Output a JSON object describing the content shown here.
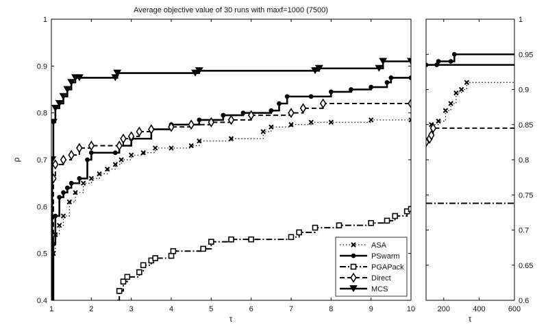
{
  "chart_data": [
    {
      "type": "line",
      "title": "Average objective value of 30 runs with maxf=1000 (7500)",
      "xlabel": "τ",
      "ylabel": "ρ",
      "xlim": [
        1,
        10
      ],
      "ylim": [
        0.4,
        1
      ],
      "xticks": [
        "1",
        "2",
        "3",
        "4",
        "5",
        "6",
        "7",
        "8",
        "9",
        "10"
      ],
      "yticks": [
        "0.4",
        "0.5",
        "0.6",
        "0.7",
        "0.8",
        "0.9",
        "1"
      ],
      "legend_position": "bottom-right",
      "series": [
        {
          "name": "ASA",
          "style": "dotted",
          "marker": "x",
          "points": [
            [
              1.0,
              0.4
            ],
            [
              1.05,
              0.5
            ],
            [
              1.1,
              0.54
            ],
            [
              1.2,
              0.56
            ],
            [
              1.3,
              0.58
            ],
            [
              1.45,
              0.61
            ],
            [
              1.6,
              0.63
            ],
            [
              1.8,
              0.65
            ],
            [
              2.0,
              0.66
            ],
            [
              2.2,
              0.67
            ],
            [
              2.4,
              0.68
            ],
            [
              2.6,
              0.69
            ],
            [
              2.75,
              0.7
            ],
            [
              3.0,
              0.71
            ],
            [
              3.3,
              0.715
            ],
            [
              3.6,
              0.725
            ],
            [
              4.0,
              0.725
            ],
            [
              4.5,
              0.73
            ],
            [
              4.7,
              0.74
            ],
            [
              5.5,
              0.745
            ],
            [
              6.3,
              0.76
            ],
            [
              6.5,
              0.77
            ],
            [
              7.0,
              0.775
            ],
            [
              7.5,
              0.78
            ],
            [
              8.0,
              0.78
            ],
            [
              9.0,
              0.785
            ],
            [
              10.0,
              0.785
            ]
          ]
        },
        {
          "name": "PSwarm",
          "style": "solid",
          "marker": "o",
          "points": [
            [
              1.0,
              0.4
            ],
            [
              1.05,
              0.52
            ],
            [
              1.1,
              0.58
            ],
            [
              1.2,
              0.62
            ],
            [
              1.3,
              0.63
            ],
            [
              1.4,
              0.64
            ],
            [
              1.5,
              0.65
            ],
            [
              1.7,
              0.66
            ],
            [
              1.9,
              0.7
            ],
            [
              2.0,
              0.715
            ],
            [
              2.6,
              0.715
            ],
            [
              2.7,
              0.73
            ],
            [
              3.0,
              0.745
            ],
            [
              3.5,
              0.765
            ],
            [
              4.0,
              0.775
            ],
            [
              4.7,
              0.785
            ],
            [
              5.3,
              0.795
            ],
            [
              5.8,
              0.8
            ],
            [
              6.5,
              0.805
            ],
            [
              6.7,
              0.82
            ],
            [
              6.9,
              0.835
            ],
            [
              7.5,
              0.835
            ],
            [
              8.0,
              0.845
            ],
            [
              8.5,
              0.85
            ],
            [
              9.0,
              0.855
            ],
            [
              9.4,
              0.865
            ],
            [
              9.5,
              0.875
            ],
            [
              10.0,
              0.875
            ]
          ]
        },
        {
          "name": "PGAPack",
          "style": "dashdot",
          "marker": "s",
          "points": [
            [
              2.65,
              0.4
            ],
            [
              2.7,
              0.42
            ],
            [
              2.8,
              0.44
            ],
            [
              2.9,
              0.45
            ],
            [
              3.2,
              0.46
            ],
            [
              3.3,
              0.475
            ],
            [
              3.5,
              0.485
            ],
            [
              3.6,
              0.49
            ],
            [
              4.0,
              0.495
            ],
            [
              4.05,
              0.505
            ],
            [
              4.8,
              0.51
            ],
            [
              5.0,
              0.525
            ],
            [
              5.5,
              0.53
            ],
            [
              6.0,
              0.53
            ],
            [
              7.0,
              0.535
            ],
            [
              7.2,
              0.545
            ],
            [
              7.6,
              0.555
            ],
            [
              8.2,
              0.56
            ],
            [
              9.0,
              0.565
            ],
            [
              9.4,
              0.57
            ],
            [
              9.6,
              0.58
            ],
            [
              9.9,
              0.59
            ],
            [
              10.0,
              0.595
            ]
          ]
        },
        {
          "name": "Direct",
          "style": "dashed",
          "marker": "d",
          "points": [
            [
              1.0,
              0.4
            ],
            [
              1.05,
              0.66
            ],
            [
              1.1,
              0.69
            ],
            [
              1.3,
              0.7
            ],
            [
              1.5,
              0.71
            ],
            [
              1.7,
              0.725
            ],
            [
              2.0,
              0.73
            ],
            [
              2.7,
              0.73
            ],
            [
              2.8,
              0.745
            ],
            [
              3.0,
              0.75
            ],
            [
              3.2,
              0.76
            ],
            [
              3.5,
              0.765
            ],
            [
              4.0,
              0.77
            ],
            [
              4.5,
              0.775
            ],
            [
              5.0,
              0.78
            ],
            [
              5.5,
              0.785
            ],
            [
              6.0,
              0.795
            ],
            [
              7.0,
              0.8
            ],
            [
              7.3,
              0.81
            ],
            [
              7.8,
              0.82
            ],
            [
              10.0,
              0.82
            ]
          ]
        },
        {
          "name": "MCS",
          "style": "solid",
          "marker": "v",
          "points": [
            [
              1.0,
              0.4
            ],
            [
              1.02,
              0.7
            ],
            [
              1.05,
              0.78
            ],
            [
              1.1,
              0.81
            ],
            [
              1.2,
              0.82
            ],
            [
              1.3,
              0.835
            ],
            [
              1.4,
              0.85
            ],
            [
              1.5,
              0.865
            ],
            [
              1.6,
              0.875
            ],
            [
              1.7,
              0.875
            ],
            [
              2.6,
              0.875
            ],
            [
              2.65,
              0.885
            ],
            [
              4.6,
              0.885
            ],
            [
              4.7,
              0.89
            ],
            [
              7.6,
              0.89
            ],
            [
              7.7,
              0.895
            ],
            [
              9.2,
              0.895
            ],
            [
              9.3,
              0.91
            ],
            [
              10.0,
              0.91
            ]
          ]
        }
      ]
    },
    {
      "type": "line",
      "xlabel": "τ",
      "xlim": [
        100,
        600
      ],
      "ylim": [
        0.6,
        1
      ],
      "xticks": [
        "200",
        "400",
        "600"
      ],
      "yticks": [
        "0.6",
        "0.65",
        "0.7",
        "0.75",
        "0.8",
        "0.85",
        "0.9",
        "0.95",
        "1"
      ],
      "series": [
        {
          "name": "ASA",
          "points": [
            [
              130,
              0.85
            ],
            [
              170,
              0.855
            ],
            [
              210,
              0.87
            ],
            [
              240,
              0.88
            ],
            [
              270,
              0.895
            ],
            [
              300,
              0.9
            ],
            [
              330,
              0.91
            ],
            [
              600,
              0.91
            ]
          ]
        },
        {
          "name": "PSwarm",
          "points": [
            [
              100,
              0.935
            ],
            [
              160,
              0.935
            ],
            [
              170,
              0.94
            ],
            [
              240,
              0.94
            ],
            [
              260,
              0.95
            ],
            [
              600,
              0.95
            ]
          ]
        },
        {
          "name": "PGAPack",
          "points": [
            [
              100,
              0.738
            ],
            [
              600,
              0.738
            ]
          ]
        },
        {
          "name": "Direct",
          "points": [
            [
              100,
              0.825
            ],
            [
              120,
              0.83
            ],
            [
              130,
              0.835
            ],
            [
              140,
              0.845
            ],
            [
              600,
              0.845
            ]
          ]
        },
        {
          "name": "MCS",
          "points": [
            [
              100,
              0.935
            ],
            [
              600,
              0.935
            ]
          ]
        }
      ]
    }
  ]
}
